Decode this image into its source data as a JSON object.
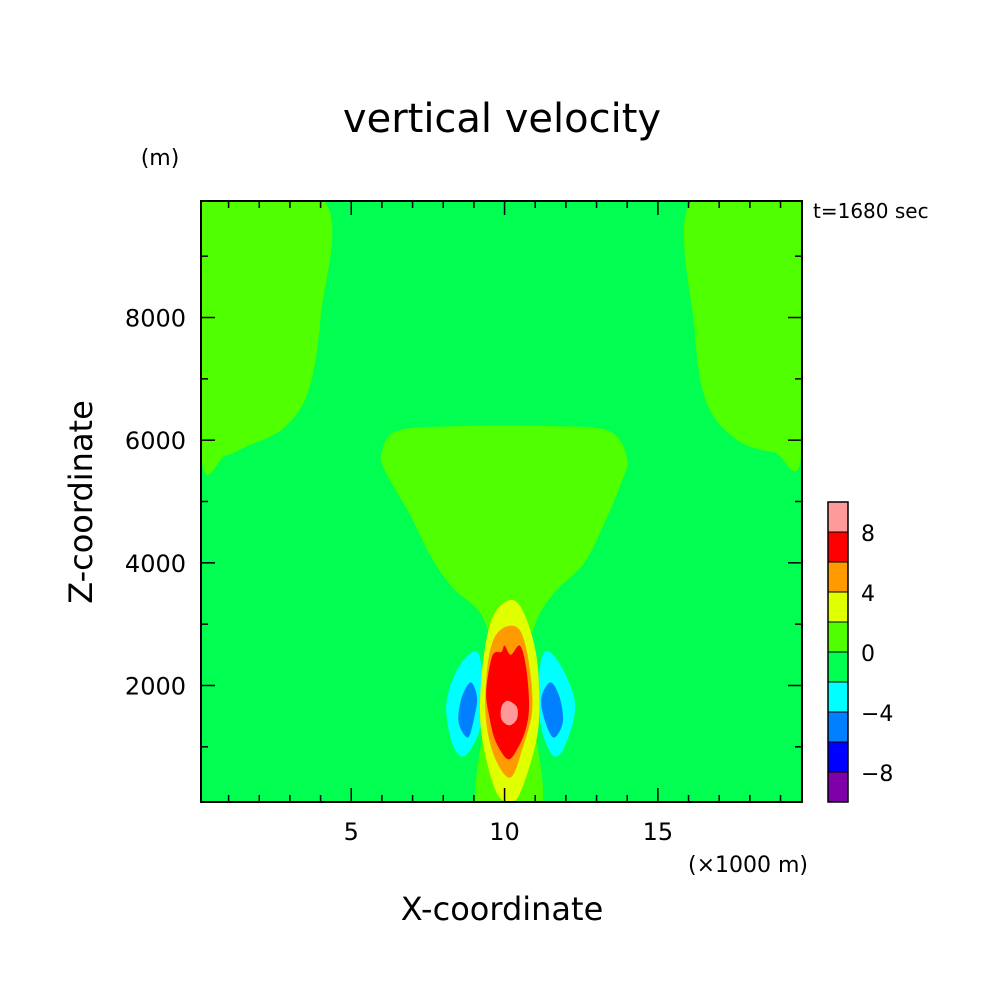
{
  "chart_data": {
    "type": "heatmap",
    "title": "vertical velocity",
    "xlabel": "X-coordinate",
    "ylabel": "Z-coordinate",
    "y_unit": "(m)",
    "x_unit": "(×1000 m)",
    "time_label": "t=1680 sec",
    "xlim": [
      0.1,
      19.7
    ],
    "ylim": [
      100,
      9900
    ],
    "x_ticks": [
      {
        "value": 5,
        "label": "5"
      },
      {
        "value": 10,
        "label": "10"
      },
      {
        "value": 15,
        "label": "15"
      }
    ],
    "y_ticks": [
      {
        "value": 2000,
        "label": "2000"
      },
      {
        "value": 4000,
        "label": "4000"
      },
      {
        "value": 6000,
        "label": "6000"
      },
      {
        "value": 8000,
        "label": "8000"
      }
    ],
    "levels": [
      -10,
      -8,
      -6,
      -4,
      -2,
      0,
      2,
      4,
      6,
      8,
      10
    ],
    "level_colors": [
      "#7f00a8",
      "#0000ff",
      "#0080ff",
      "#00ffff",
      "#00ff50",
      "#50ff00",
      "#e0ff00",
      "#ff9a00",
      "#ff0000",
      "#ff9a9a"
    ],
    "colorbar_labels": [
      {
        "value": 8,
        "label": "8"
      },
      {
        "value": 4,
        "label": "4"
      },
      {
        "value": 0,
        "label": "0"
      },
      {
        "value": -4,
        "label": "−4"
      },
      {
        "value": -8,
        "label": "−8"
      }
    ],
    "background_color": "#00ff50",
    "regions": [
      {
        "name": "upper-left-weak-updraft",
        "level": "0 to 2",
        "points": [
          [
            0.1,
            9900
          ],
          [
            4.1,
            9900
          ],
          [
            4.0,
            8000
          ],
          [
            3.6,
            6800
          ],
          [
            2.8,
            6200
          ],
          [
            1.6,
            5900
          ],
          [
            0.9,
            5750
          ],
          [
            0.1,
            5750
          ]
        ]
      },
      {
        "name": "upper-right-weak-updraft",
        "level": "0 to 2",
        "points": [
          [
            16.1,
            9900
          ],
          [
            19.7,
            9900
          ],
          [
            19.7,
            5800
          ],
          [
            18.8,
            5800
          ],
          [
            17.6,
            6000
          ],
          [
            16.6,
            6600
          ],
          [
            16.2,
            7800
          ]
        ]
      },
      {
        "name": "central-plume",
        "level": "0 to 2",
        "points": [
          [
            6.5,
            6150
          ],
          [
            8.5,
            6230
          ],
          [
            11.5,
            6230
          ],
          [
            13.4,
            6150
          ],
          [
            14.0,
            5700
          ],
          [
            13.8,
            5300
          ],
          [
            13.3,
            4700
          ],
          [
            12.6,
            4000
          ],
          [
            11.6,
            3500
          ],
          [
            11.0,
            3000
          ],
          [
            10.7,
            2200
          ],
          [
            11.2,
            0
          ],
          [
            9.1,
            0
          ],
          [
            9.6,
            2200
          ],
          [
            9.3,
            3100
          ],
          [
            8.3,
            3600
          ],
          [
            7.6,
            4100
          ],
          [
            6.9,
            4800
          ],
          [
            6.1,
            5500
          ],
          [
            6.0,
            5800
          ]
        ]
      },
      {
        "name": "left-downdraft-cyan",
        "level": "-4 to -2",
        "points": [
          [
            9.1,
            2550
          ],
          [
            8.5,
            2300
          ],
          [
            8.1,
            1700
          ],
          [
            8.3,
            1050
          ],
          [
            8.7,
            850
          ],
          [
            9.2,
            1300
          ],
          [
            9.3,
            2000
          ]
        ]
      },
      {
        "name": "left-downdraft-blue",
        "level": "-6 to -4",
        "points": [
          [
            8.9,
            2050
          ],
          [
            8.6,
            1800
          ],
          [
            8.5,
            1400
          ],
          [
            8.8,
            1150
          ],
          [
            9.0,
            1450
          ],
          [
            9.1,
            1800
          ]
        ]
      },
      {
        "name": "right-downdraft-cyan",
        "level": "-4 to -2",
        "points": [
          [
            11.3,
            2550
          ],
          [
            11.8,
            2350
          ],
          [
            12.3,
            1700
          ],
          [
            12.0,
            1050
          ],
          [
            11.6,
            850
          ],
          [
            11.2,
            1300
          ],
          [
            11.1,
            2000
          ]
        ]
      },
      {
        "name": "right-downdraft-blue",
        "level": "-6 to -4",
        "points": [
          [
            11.5,
            2050
          ],
          [
            11.8,
            1800
          ],
          [
            11.9,
            1400
          ],
          [
            11.6,
            1150
          ],
          [
            11.3,
            1450
          ],
          [
            11.2,
            1800
          ]
        ]
      },
      {
        "name": "updraft-yellow",
        "level": "2 to 4",
        "points": [
          [
            10.1,
            3380
          ],
          [
            10.5,
            3300
          ],
          [
            10.9,
            2800
          ],
          [
            11.1,
            2200
          ],
          [
            11.1,
            1300
          ],
          [
            10.7,
            500
          ],
          [
            10.3,
            100
          ],
          [
            9.8,
            200
          ],
          [
            9.4,
            800
          ],
          [
            9.2,
            1500
          ],
          [
            9.3,
            2400
          ],
          [
            9.6,
            3100
          ]
        ]
      },
      {
        "name": "updraft-orange",
        "level": "4 to 6",
        "points": [
          [
            10.0,
            2950
          ],
          [
            10.5,
            2900
          ],
          [
            10.8,
            2350
          ],
          [
            10.9,
            1600
          ],
          [
            10.6,
            1000
          ],
          [
            10.2,
            500
          ],
          [
            9.7,
            800
          ],
          [
            9.4,
            1400
          ],
          [
            9.4,
            2100
          ],
          [
            9.6,
            2700
          ]
        ]
      },
      {
        "name": "updraft-red",
        "level": "6 to 8",
        "points": [
          [
            9.6,
            2480
          ],
          [
            9.9,
            2550
          ],
          [
            10.0,
            2650
          ],
          [
            10.2,
            2500
          ],
          [
            10.5,
            2650
          ],
          [
            10.7,
            2300
          ],
          [
            10.8,
            1700
          ],
          [
            10.7,
            1300
          ],
          [
            10.4,
            950
          ],
          [
            10.1,
            800
          ],
          [
            9.7,
            1100
          ],
          [
            9.5,
            1500
          ],
          [
            9.4,
            1900
          ]
        ]
      },
      {
        "name": "updraft-core-pink",
        "level": "8 to 10",
        "points": [
          [
            10.1,
            1750
          ],
          [
            10.4,
            1650
          ],
          [
            10.4,
            1450
          ],
          [
            10.15,
            1350
          ],
          [
            9.9,
            1450
          ],
          [
            9.9,
            1650
          ]
        ]
      }
    ]
  }
}
